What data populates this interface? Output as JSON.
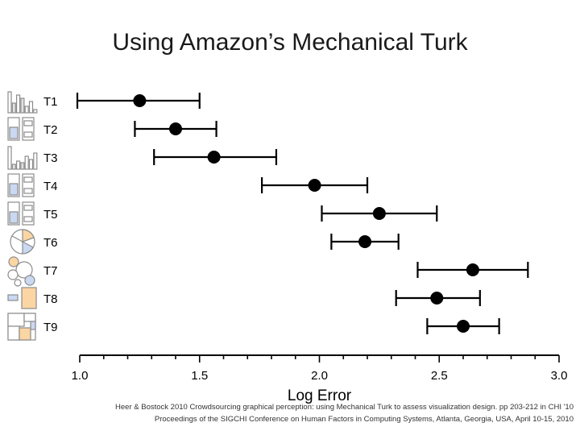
{
  "title": "Using Amazon’s Mechanical Turk",
  "chart_data": {
    "type": "scatter",
    "subtype": "dot-plot-with-error-bars",
    "categories": [
      "T1",
      "T2",
      "T3",
      "T4",
      "T5",
      "T6",
      "T7",
      "T8",
      "T9"
    ],
    "values": [
      1.25,
      1.4,
      1.56,
      1.98,
      2.25,
      2.19,
      2.64,
      2.49,
      2.6
    ],
    "ci_low": [
      0.99,
      1.23,
      1.31,
      1.76,
      2.01,
      2.05,
      2.41,
      2.32,
      2.45
    ],
    "ci_high": [
      1.5,
      1.57,
      1.82,
      2.2,
      2.49,
      2.33,
      2.87,
      2.67,
      2.75
    ],
    "xlabel": "Log Error",
    "ylabel": "",
    "xlim": [
      1.0,
      3.0
    ],
    "xticks": [
      "1.0",
      "1.5",
      "2.0",
      "2.5",
      "3.0"
    ],
    "grid": false,
    "marker_color": "#000000",
    "thumbnail_icons": [
      "bar-chart-icon",
      "stacked-bar-chart-icon",
      "grouped-bar-chart-icon",
      "stacked-bar-chart-icon",
      "stacked-bar-chart-icon",
      "pie-chart-icon",
      "bubble-chart-icon",
      "rectangle-area-icon",
      "treemap-icon"
    ],
    "thumbnail_colors": {
      "highlight_orange": "#fbd5a3",
      "highlight_blue": "#cad8f2",
      "outline": "#8c8c8c"
    }
  },
  "citation": {
    "line1": "Heer & Bostock 2010 Crowdsourcing graphical perception: using Mechanical Turk to assess visualization design. pp 203-212 in CHI '10",
    "line2": "Proceedings of the SIGCHI Conference on Human Factors in Computing Systems, Atlanta, Georgia, USA, April 10-15, 2010"
  }
}
